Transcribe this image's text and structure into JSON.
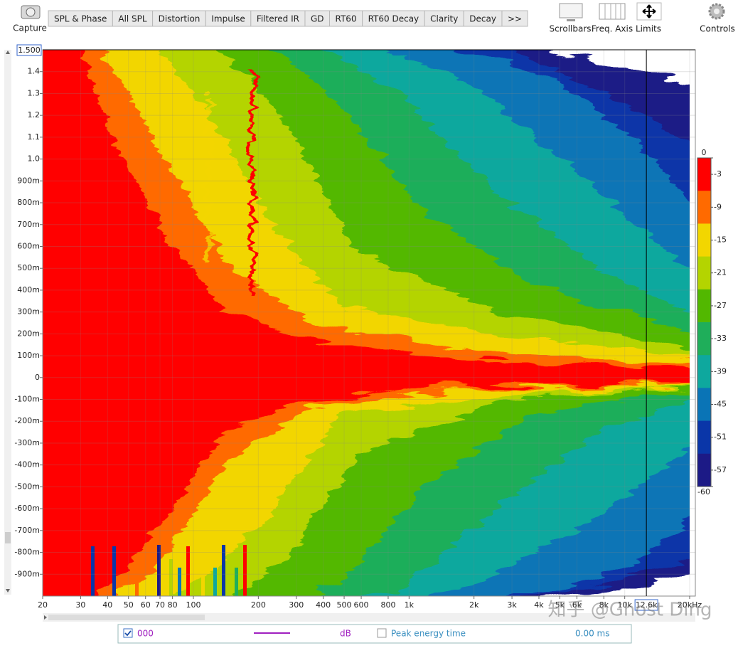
{
  "toolbar": {
    "capture": "Capture",
    "tabs": [
      "SPL & Phase",
      "All SPL",
      "Distortion",
      "Impulse",
      "Filtered IR",
      "GD",
      "RT60",
      "RT60 Decay",
      "Clarity",
      "Decay",
      ">>"
    ],
    "right_buttons": [
      "Scrollbars",
      "Freq. Axis",
      "Limits",
      "Controls"
    ]
  },
  "chart_data": {
    "type": "spectrogram",
    "xscale": "log",
    "xlim": [
      20,
      20000
    ],
    "ylim": [
      -1,
      1.5
    ],
    "grid": true,
    "xticks": [
      20,
      30,
      40,
      50,
      60,
      70,
      80,
      100,
      200,
      300,
      400,
      500,
      600,
      800,
      {
        "value": 1000,
        "label": "1k"
      },
      {
        "value": 2000,
        "label": "2k"
      },
      {
        "value": 3000,
        "label": "3k"
      },
      {
        "value": 4000,
        "label": "4k"
      },
      {
        "value": 5000,
        "label": "5k"
      },
      {
        "value": 6000,
        "label": "6k"
      },
      {
        "value": 8000,
        "label": "8k"
      },
      {
        "value": 10000,
        "label": "10k"
      },
      {
        "value": 20000,
        "label": "20kHz"
      }
    ],
    "yticks": [
      1.4,
      1.3,
      1.2,
      1.1,
      {
        "value": 1,
        "label": "1.0"
      },
      {
        "value": 0.9,
        "label": "900m"
      },
      {
        "value": 0.8,
        "label": "800m"
      },
      {
        "value": 0.7,
        "label": "700m"
      },
      {
        "value": 0.6,
        "label": "600m"
      },
      {
        "value": 0.5,
        "label": "500m"
      },
      {
        "value": 0.4,
        "label": "400m"
      },
      {
        "value": 0.3,
        "label": "300m"
      },
      {
        "value": 0.2,
        "label": "200m"
      },
      {
        "value": 0.1,
        "label": "100m"
      },
      0,
      {
        "value": -0.1,
        "label": "-100m"
      },
      {
        "value": -0.2,
        "label": "-200m"
      },
      {
        "value": -0.3,
        "label": "-300m"
      },
      {
        "value": -0.4,
        "label": "-400m"
      },
      {
        "value": -0.5,
        "label": "-500m"
      },
      {
        "value": -0.6,
        "label": "-600m"
      },
      {
        "value": -0.7,
        "label": "-700m"
      },
      {
        "value": -0.8,
        "label": "-800m"
      },
      {
        "value": -0.9,
        "label": "-900m"
      }
    ],
    "x_cursor": {
      "value": 12600,
      "label": "12.6k"
    },
    "y_cursor": {
      "value": 1.5,
      "label": "1.500"
    },
    "colorbar": {
      "zlim": [
        -60,
        0
      ],
      "ticks": [
        0,
        -3,
        -9,
        -15,
        -21,
        -27,
        -33,
        -39,
        -45,
        -51,
        -57,
        -60
      ],
      "colors": [
        "#ff0000",
        "#ff6a00",
        "#f2d600",
        "#b4d400",
        "#52b800",
        "#1fae5a",
        "#0ea89e",
        "#0a74b6",
        "#0a36a8",
        "#1c1a86"
      ]
    }
  },
  "legend": {
    "checked": true,
    "series_name": "000",
    "series_color": "#a020c0",
    "unit": "dB",
    "second_checked": false,
    "second_label": "Peak energy time",
    "second_value": "0.00 ms"
  },
  "watermark": "知乎 @Ghost Ding"
}
